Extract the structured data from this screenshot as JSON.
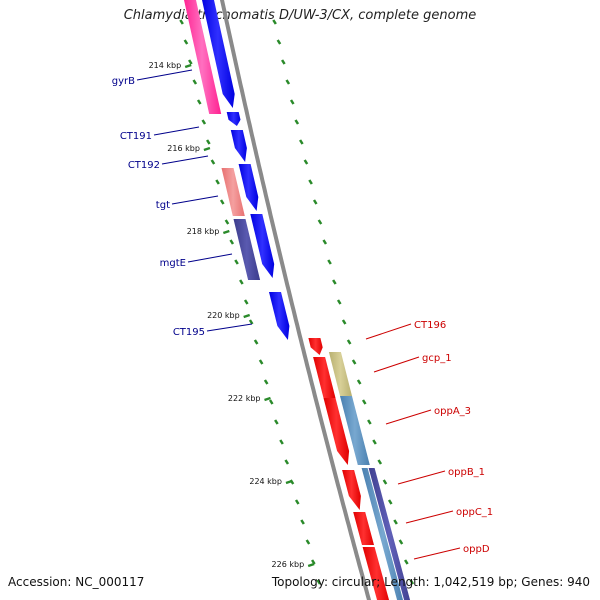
{
  "title": "Chlamydia trachomatis D/UW-3/CX, complete genome",
  "footer": {
    "accession": "Accession: NC_000117",
    "summary": "Topology: circular; Length: 1,042,519 bp; Genes: 940"
  },
  "colors": {
    "backbone": "#8a8a8a",
    "tick": "#2a8a2a",
    "forward_gene": "#0000ff",
    "reverse_gene": "#ff0000",
    "left_label": "#00008b",
    "right_label": "#cc0000"
  },
  "kbp_labels": [
    "214 kbp",
    "216 kbp",
    "218 kbp",
    "220 kbp",
    "222 kbp",
    "224 kbp",
    "226 kbp"
  ],
  "left_genes": [
    "gyrB",
    "CT191",
    "CT192",
    "tgt",
    "mgtE",
    "CT195"
  ],
  "right_genes": [
    "CT196",
    "gcp_1",
    "oppA_3",
    "oppB_1",
    "oppC_1",
    "oppD"
  ]
}
